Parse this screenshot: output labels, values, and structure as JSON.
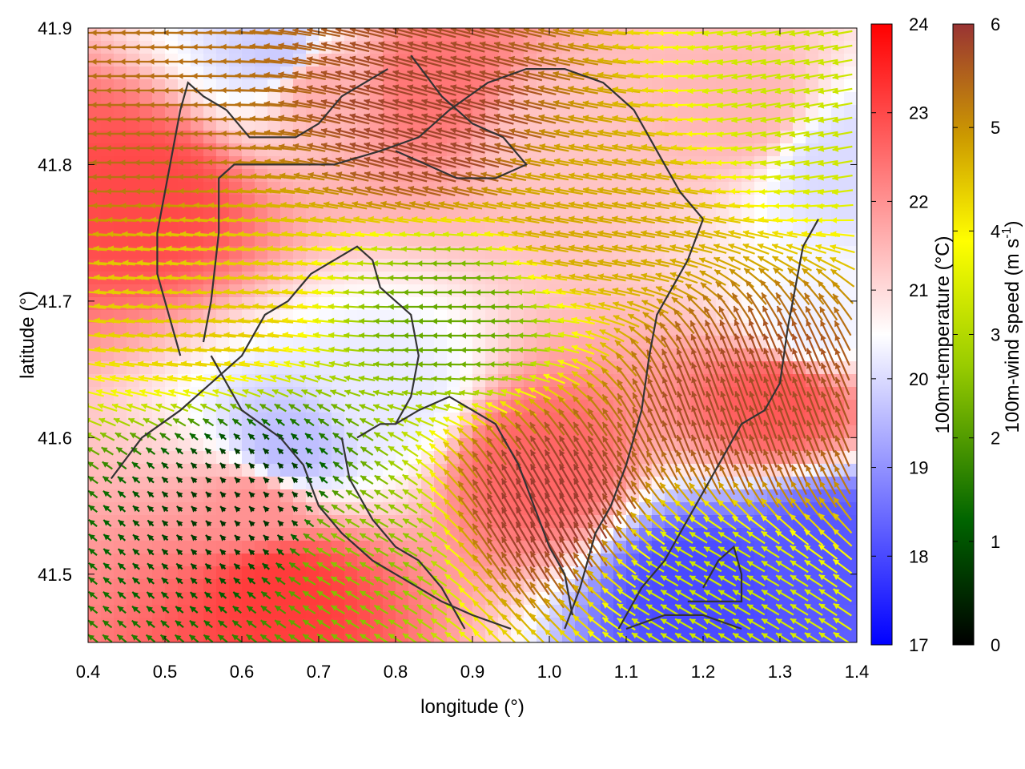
{
  "chart_data": {
    "type": "heatmap",
    "overlay": "vector-field",
    "xlabel": "longitude (°)",
    "ylabel": "latitude (°)",
    "xlim": [
      0.4,
      1.4
    ],
    "ylim": [
      41.45,
      41.9
    ],
    "x_ticks": [
      "0.4",
      "0.5",
      "0.6",
      "0.7",
      "0.8",
      "0.9",
      "1.0",
      "1.1",
      "1.2",
      "1.3",
      "1.4"
    ],
    "y_ticks": [
      "41.5",
      "41.6",
      "41.7",
      "41.8",
      "41.9"
    ],
    "temperature_colorbar": {
      "label": "100m-temperature (°C)",
      "range": [
        17,
        24
      ],
      "ticks": [
        "17",
        "18",
        "19",
        "20",
        "21",
        "22",
        "23",
        "24"
      ],
      "colors": [
        "#0000ff",
        "#ffffff",
        "#ff0000"
      ]
    },
    "wind_colorbar": {
      "label": "100m-wind speed (m s",
      "label_sup": "-1",
      "label_end": ")",
      "range": [
        0,
        6
      ],
      "ticks": [
        "0",
        "1",
        "2",
        "3",
        "4",
        "5",
        "6"
      ],
      "colors": [
        "#000000",
        "#006400",
        "#99cc00",
        "#ffff00",
        "#cc9900",
        "#993333"
      ]
    },
    "temperature_regions": [
      {
        "lon": 0.47,
        "lat": 41.78,
        "value": 23.0
      },
      {
        "lon": 0.65,
        "lat": 41.49,
        "value": 23.2
      },
      {
        "lon": 0.62,
        "lat": 41.55,
        "value": 22.0
      },
      {
        "lon": 0.98,
        "lat": 41.58,
        "value": 22.6
      },
      {
        "lon": 1.3,
        "lat": 41.63,
        "value": 22.8
      },
      {
        "lon": 0.85,
        "lat": 41.86,
        "value": 22.4
      },
      {
        "lon": 0.7,
        "lat": 41.86,
        "value": 21.6
      },
      {
        "lon": 1.0,
        "lat": 41.82,
        "value": 21.3
      },
      {
        "lon": 1.25,
        "lat": 41.84,
        "value": 21.5
      },
      {
        "lon": 0.66,
        "lat": 41.59,
        "value": 19.6
      },
      {
        "lon": 0.79,
        "lat": 41.63,
        "value": 20.2
      },
      {
        "lon": 0.65,
        "lat": 41.88,
        "value": 19.8
      },
      {
        "lon": 1.2,
        "lat": 41.49,
        "value": 18.0
      },
      {
        "lon": 1.36,
        "lat": 41.52,
        "value": 18.2
      },
      {
        "lon": 1.34,
        "lat": 41.68,
        "value": 20.3
      },
      {
        "lon": 1.38,
        "lat": 41.8,
        "value": 20.0
      }
    ],
    "wind_regions": [
      {
        "lon": 0.88,
        "lat": 41.69,
        "speed": 2.0,
        "dir_deg": 180
      },
      {
        "lon": 0.62,
        "lat": 41.55,
        "speed": 0.6,
        "dir_deg": 135
      },
      {
        "lon": 0.85,
        "lat": 41.83,
        "speed": 5.8,
        "dir_deg": 165
      },
      {
        "lon": 1.0,
        "lat": 41.55,
        "speed": 5.9,
        "dir_deg": 120
      },
      {
        "lon": 1.25,
        "lat": 41.62,
        "speed": 5.7,
        "dir_deg": 110
      },
      {
        "lon": 0.55,
        "lat": 41.7,
        "speed": 4.2,
        "dir_deg": 175
      },
      {
        "lon": 1.05,
        "lat": 41.76,
        "speed": 4.6,
        "dir_deg": 170
      },
      {
        "lon": 0.47,
        "lat": 41.83,
        "speed": 5.3,
        "dir_deg": 180
      },
      {
        "lon": 1.35,
        "lat": 41.85,
        "speed": 3.0,
        "dir_deg": 190
      },
      {
        "lon": 1.2,
        "lat": 41.49,
        "speed": 3.0,
        "dir_deg": 150
      },
      {
        "lon": 0.75,
        "lat": 41.52,
        "speed": 2.3,
        "dir_deg": 150
      }
    ],
    "contours": [
      [
        [
          0.43,
          41.57
        ],
        [
          0.47,
          41.6
        ],
        [
          0.52,
          41.62
        ],
        [
          0.56,
          41.64
        ],
        [
          0.6,
          41.66
        ],
        [
          0.63,
          41.69
        ],
        [
          0.66,
          41.7
        ],
        [
          0.69,
          41.72
        ],
        [
          0.72,
          41.73
        ],
        [
          0.75,
          41.74
        ],
        [
          0.77,
          41.73
        ],
        [
          0.78,
          41.71
        ],
        [
          0.8,
          41.7
        ],
        [
          0.82,
          41.69
        ],
        [
          0.83,
          41.66
        ],
        [
          0.82,
          41.63
        ],
        [
          0.8,
          41.61
        ],
        [
          0.78,
          41.61
        ],
        [
          0.75,
          41.6
        ]
      ],
      [
        [
          0.73,
          41.6
        ],
        [
          0.74,
          41.57
        ],
        [
          0.77,
          41.54
        ],
        [
          0.8,
          41.52
        ],
        [
          0.83,
          41.51
        ],
        [
          0.86,
          41.49
        ],
        [
          0.89,
          41.46
        ]
      ],
      [
        [
          0.8,
          41.61
        ],
        [
          0.83,
          41.62
        ],
        [
          0.87,
          41.63
        ],
        [
          0.9,
          41.62
        ],
        [
          0.93,
          41.61
        ],
        [
          0.96,
          41.58
        ],
        [
          0.98,
          41.55
        ],
        [
          1.0,
          41.52
        ],
        [
          1.02,
          41.5
        ],
        [
          1.03,
          41.47
        ]
      ],
      [
        [
          0.55,
          41.67
        ],
        [
          0.56,
          41.7
        ],
        [
          0.57,
          41.75
        ],
        [
          0.57,
          41.79
        ],
        [
          0.59,
          41.8
        ],
        [
          0.63,
          41.8
        ],
        [
          0.68,
          41.8
        ],
        [
          0.72,
          41.8
        ],
        [
          0.78,
          41.81
        ],
        [
          0.83,
          41.82
        ],
        [
          0.87,
          41.84
        ],
        [
          0.92,
          41.86
        ],
        [
          0.97,
          41.87
        ],
        [
          1.02,
          41.87
        ],
        [
          1.07,
          41.86
        ],
        [
          1.11,
          41.84
        ],
        [
          1.14,
          41.81
        ],
        [
          1.17,
          41.78
        ],
        [
          1.2,
          41.76
        ]
      ],
      [
        [
          0.82,
          41.88
        ],
        [
          0.86,
          41.85
        ],
        [
          0.9,
          41.83
        ],
        [
          0.94,
          41.82
        ],
        [
          0.97,
          41.8
        ],
        [
          0.93,
          41.79
        ],
        [
          0.88,
          41.79
        ],
        [
          0.84,
          41.8
        ],
        [
          0.8,
          41.81
        ]
      ],
      [
        [
          0.52,
          41.66
        ],
        [
          0.51,
          41.68
        ],
        [
          0.5,
          41.7
        ],
        [
          0.49,
          41.72
        ],
        [
          0.49,
          41.75
        ],
        [
          0.5,
          41.78
        ],
        [
          0.51,
          41.81
        ],
        [
          0.52,
          41.84
        ],
        [
          0.53,
          41.86
        ],
        [
          0.55,
          41.85
        ],
        [
          0.58,
          41.84
        ]
      ],
      [
        [
          0.58,
          41.84
        ],
        [
          0.61,
          41.82
        ],
        [
          0.64,
          41.82
        ],
        [
          0.67,
          41.82
        ],
        [
          0.7,
          41.83
        ],
        [
          0.73,
          41.85
        ],
        [
          0.76,
          41.86
        ],
        [
          0.79,
          41.87
        ]
      ],
      [
        [
          1.2,
          41.76
        ],
        [
          1.18,
          41.73
        ],
        [
          1.16,
          41.71
        ],
        [
          1.14,
          41.69
        ],
        [
          1.13,
          41.66
        ],
        [
          1.12,
          41.62
        ],
        [
          1.1,
          41.58
        ],
        [
          1.08,
          41.55
        ],
        [
          1.06,
          41.53
        ],
        [
          1.05,
          41.51
        ],
        [
          1.04,
          41.49
        ],
        [
          1.02,
          41.46
        ]
      ],
      [
        [
          1.35,
          41.76
        ],
        [
          1.33,
          41.74
        ],
        [
          1.32,
          41.71
        ],
        [
          1.31,
          41.68
        ],
        [
          1.3,
          41.64
        ],
        [
          1.28,
          41.62
        ],
        [
          1.25,
          41.61
        ],
        [
          1.23,
          41.59
        ],
        [
          1.21,
          41.57
        ],
        [
          1.19,
          41.55
        ],
        [
          1.17,
          41.53
        ],
        [
          1.15,
          41.51
        ],
        [
          1.12,
          41.49
        ],
        [
          1.09,
          41.46
        ]
      ],
      [
        [
          1.18,
          41.48
        ],
        [
          1.22,
          41.48
        ],
        [
          1.25,
          41.48
        ],
        [
          1.25,
          41.5
        ],
        [
          1.24,
          41.52
        ],
        [
          1.22,
          41.51
        ],
        [
          1.2,
          41.49
        ]
      ],
      [
        [
          1.1,
          41.46
        ],
        [
          1.15,
          41.47
        ],
        [
          1.2,
          41.47
        ],
        [
          1.25,
          41.46
        ]
      ],
      [
        [
          0.56,
          41.66
        ],
        [
          0.6,
          41.62
        ],
        [
          0.65,
          41.6
        ],
        [
          0.68,
          41.58
        ],
        [
          0.7,
          41.55
        ],
        [
          0.73,
          41.53
        ],
        [
          0.77,
          41.51
        ],
        [
          0.8,
          41.5
        ],
        [
          0.83,
          41.49
        ],
        [
          0.86,
          41.48
        ],
        [
          0.9,
          41.47
        ],
        [
          0.95,
          41.46
        ]
      ]
    ]
  }
}
